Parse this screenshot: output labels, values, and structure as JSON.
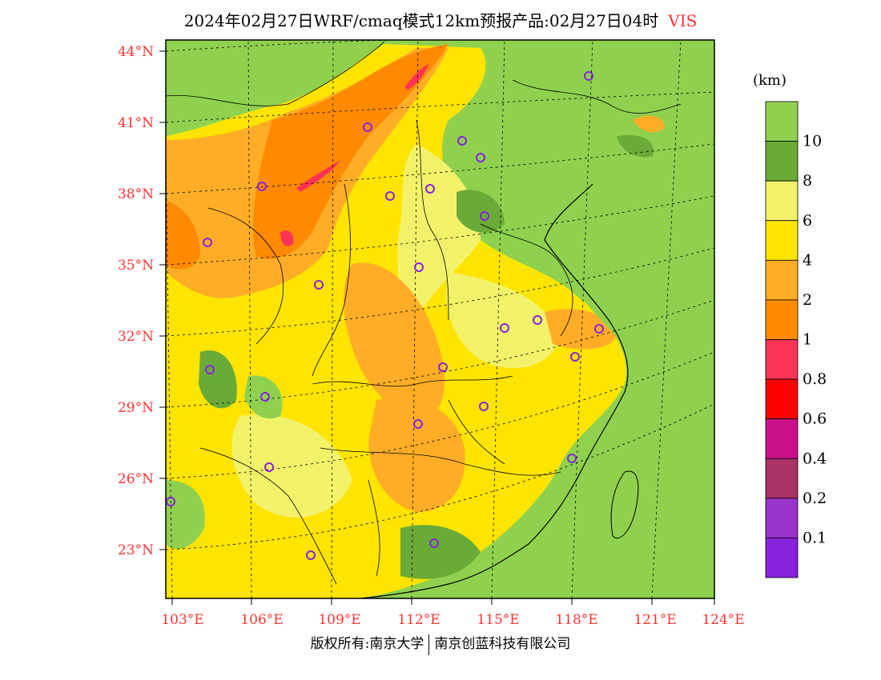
{
  "title": "2024年02月27日WRF/cmaq模式12km预报产品:02月27日04时",
  "variable": "VIS",
  "unit": "(km)",
  "lat_labels": [
    "44°N",
    "41°N",
    "38°N",
    "35°N",
    "32°N",
    "29°N",
    "26°N",
    "23°N"
  ],
  "lon_labels": [
    "103°E",
    "106°E",
    "109°E",
    "112°E",
    "115°E",
    "118°E",
    "121°E",
    "124°E"
  ],
  "legend": {
    "labels": [
      "10",
      "8",
      "6",
      "4",
      "2",
      "1",
      "0.8",
      "0.6",
      "0.4",
      "0.2",
      "0.1"
    ],
    "colors": [
      "#8fd14f",
      "#6aaa36",
      "#f2f26a",
      "#ffe400",
      "#ffad26",
      "#ff8a00",
      "#ff3355",
      "#ff0000",
      "#cc1188",
      "#aa3366",
      "#9933cc",
      "#8822dd"
    ]
  },
  "colors": {
    "green": "#8fd14f",
    "dark_green": "#6aaa36",
    "light_yellow": "#f2f26a",
    "yellow": "#ffe400",
    "orange": "#ffad26",
    "dark_orange": "#ff8a00",
    "red": "#ff3355",
    "station": "#8822dd",
    "label_red": "#ff3333"
  },
  "copyright": {
    "left": "版权所有:南京大学",
    "right": "南京创蓝科技有限公司"
  }
}
